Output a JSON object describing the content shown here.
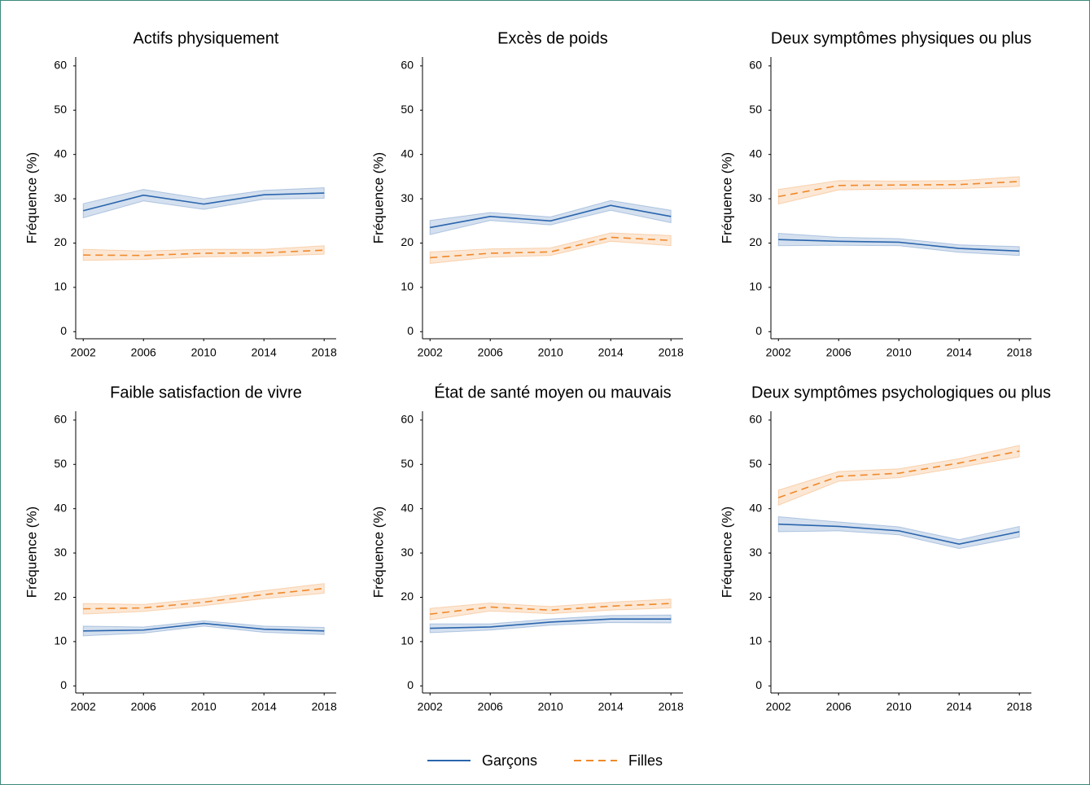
{
  "legend": [
    {
      "name": "Garçons",
      "color": "#2a65ad",
      "dash": "solid"
    },
    {
      "name": "Filles",
      "color": "#f0892a",
      "dash": "dashed"
    }
  ],
  "chart_data": [
    {
      "type": "line",
      "title": "Actifs physiquement",
      "ylabel": "Fréquence (%)",
      "x": [
        2002,
        2006,
        2010,
        2014,
        2018
      ],
      "xlim": [
        2001.5,
        2018.8
      ],
      "xticks": [
        2002,
        2006,
        2010,
        2014,
        2018
      ],
      "ylim": [
        -1.6,
        62
      ],
      "yticks": [
        0,
        10,
        20,
        30,
        40,
        50,
        60
      ],
      "series": [
        {
          "values": [
            27.3,
            30.8,
            28.8,
            30.9,
            31.3
          ],
          "lower": [
            25.7,
            29.5,
            27.6,
            29.9,
            30.1
          ],
          "upper": [
            28.9,
            32.1,
            30.0,
            31.9,
            32.5
          ]
        },
        {
          "values": [
            17.3,
            17.2,
            17.7,
            17.8,
            18.4
          ],
          "lower": [
            16.1,
            16.3,
            16.9,
            17.0,
            17.5
          ],
          "upper": [
            18.6,
            18.2,
            18.6,
            18.6,
            19.4
          ]
        }
      ]
    },
    {
      "type": "line",
      "title": "Excès de poids",
      "ylabel": "Fréquence (%)",
      "x": [
        2002,
        2006,
        2010,
        2014,
        2018
      ],
      "xlim": [
        2001.5,
        2018.8
      ],
      "xticks": [
        2002,
        2006,
        2010,
        2014,
        2018
      ],
      "ylim": [
        -1.6,
        62
      ],
      "yticks": [
        0,
        10,
        20,
        30,
        40,
        50,
        60
      ],
      "series": [
        {
          "values": [
            23.5,
            26.0,
            25.0,
            28.5,
            26.0
          ],
          "lower": [
            21.9,
            25.1,
            24.1,
            27.4,
            24.6
          ],
          "upper": [
            25.1,
            26.9,
            25.9,
            29.6,
            27.4
          ]
        },
        {
          "values": [
            16.7,
            17.7,
            18.0,
            21.3,
            20.6
          ],
          "lower": [
            15.4,
            16.8,
            17.2,
            20.4,
            19.4
          ],
          "upper": [
            18.0,
            18.7,
            18.9,
            22.3,
            21.7
          ]
        }
      ]
    },
    {
      "type": "line",
      "title": "Deux symptômes physiques ou plus",
      "ylabel": "Fréquence (%)",
      "x": [
        2002,
        2006,
        2010,
        2014,
        2018
      ],
      "xlim": [
        2001.5,
        2018.8
      ],
      "xticks": [
        2002,
        2006,
        2010,
        2014,
        2018
      ],
      "ylim": [
        -1.6,
        62
      ],
      "yticks": [
        0,
        10,
        20,
        30,
        40,
        50,
        60
      ],
      "series": [
        {
          "values": [
            20.8,
            20.4,
            20.2,
            18.8,
            18.2
          ],
          "lower": [
            19.4,
            19.5,
            19.4,
            17.9,
            17.2
          ],
          "upper": [
            22.2,
            21.3,
            21.0,
            19.6,
            19.2
          ]
        },
        {
          "values": [
            30.5,
            33.0,
            33.1,
            33.2,
            33.9
          ],
          "lower": [
            28.8,
            32.0,
            32.2,
            32.3,
            32.8
          ],
          "upper": [
            32.1,
            34.1,
            34.0,
            34.1,
            35.0
          ]
        }
      ]
    },
    {
      "type": "line",
      "title": "Faible satisfaction de vivre",
      "ylabel": "Fréquence (%)",
      "x": [
        2002,
        2006,
        2010,
        2014,
        2018
      ],
      "xlim": [
        2001.5,
        2018.8
      ],
      "xticks": [
        2002,
        2006,
        2010,
        2014,
        2018
      ],
      "ylim": [
        -1.6,
        62
      ],
      "yticks": [
        0,
        10,
        20,
        30,
        40,
        50,
        60
      ],
      "series": [
        {
          "values": [
            12.4,
            12.6,
            14.1,
            12.8,
            12.4
          ],
          "lower": [
            11.3,
            11.9,
            13.5,
            12.1,
            11.6
          ],
          "upper": [
            13.5,
            13.3,
            14.7,
            13.5,
            13.2
          ]
        },
        {
          "values": [
            17.4,
            17.6,
            18.9,
            20.6,
            22.0
          ],
          "lower": [
            16.2,
            16.8,
            18.1,
            19.7,
            20.9
          ],
          "upper": [
            18.6,
            18.4,
            19.7,
            21.5,
            23.1
          ]
        }
      ]
    },
    {
      "type": "line",
      "title": "État de santé moyen ou mauvais",
      "ylabel": "Fréquence (%)",
      "x": [
        2002,
        2006,
        2010,
        2014,
        2018
      ],
      "xlim": [
        2001.5,
        2018.8
      ],
      "xticks": [
        2002,
        2006,
        2010,
        2014,
        2018
      ],
      "ylim": [
        -1.6,
        62
      ],
      "yticks": [
        0,
        10,
        20,
        30,
        40,
        50,
        60
      ],
      "series": [
        {
          "values": [
            13.0,
            13.3,
            14.4,
            15.1,
            15.1
          ],
          "lower": [
            12.0,
            12.6,
            13.7,
            14.3,
            14.2
          ],
          "upper": [
            14.0,
            14.0,
            15.1,
            15.9,
            16.0
          ]
        },
        {
          "values": [
            16.2,
            17.8,
            17.1,
            18.0,
            18.6
          ],
          "lower": [
            14.9,
            16.9,
            16.3,
            17.1,
            17.6
          ],
          "upper": [
            17.5,
            18.7,
            17.9,
            18.9,
            19.6
          ]
        }
      ]
    },
    {
      "type": "line",
      "title": "Deux symptômes psychologiques ou plus",
      "ylabel": "Fréquence (%)",
      "x": [
        2002,
        2006,
        2010,
        2014,
        2018
      ],
      "xlim": [
        2001.5,
        2018.8
      ],
      "xticks": [
        2002,
        2006,
        2010,
        2014,
        2018
      ],
      "ylim": [
        -1.6,
        62
      ],
      "yticks": [
        0,
        10,
        20,
        30,
        40,
        50,
        60
      ],
      "series": [
        {
          "values": [
            36.5,
            36.0,
            35.0,
            32.0,
            34.8
          ],
          "lower": [
            34.8,
            35.0,
            34.1,
            31.0,
            33.6
          ],
          "upper": [
            38.2,
            37.0,
            35.9,
            33.0,
            36.0
          ]
        },
        {
          "values": [
            42.5,
            47.3,
            48.0,
            50.3,
            53.0
          ],
          "lower": [
            40.8,
            46.2,
            47.0,
            49.3,
            51.7
          ],
          "upper": [
            44.2,
            48.4,
            49.0,
            51.3,
            54.3
          ]
        }
      ]
    }
  ]
}
